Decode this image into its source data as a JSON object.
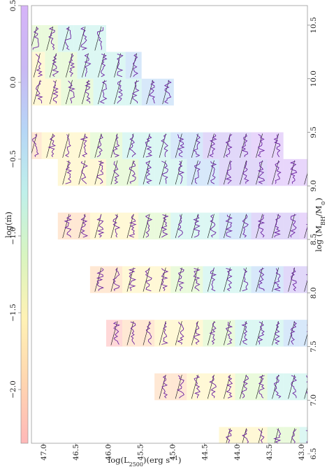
{
  "chart_data": {
    "type": "heatmap",
    "orientation": "rotated 90 degrees counter-clockwise",
    "description_of_cells": "grid of mini spectra panels colored by log(m)",
    "x_axis": {
      "label": "log(M_BH/M_⊙)",
      "label_display": "log (M",
      "label_sub": "BH",
      "label_tail": "/M",
      "label_sub2": "⊙",
      "label_end": ")",
      "range": [
        6.5,
        10.5
      ],
      "ticks": [
        "6.5",
        "7.0",
        "7.5",
        "8.0",
        "8.5",
        "9.0",
        "9.5",
        "10.0",
        "10.5"
      ]
    },
    "y_axis": {
      "label": "log(L2500)(erg s−1)",
      "label_display": "log(L",
      "label_sub": "2500",
      "label_tail": ")(erg s",
      "label_sup": "−1",
      "label_end": ")",
      "range": [
        42.75,
        47.25
      ],
      "ticks": [
        "43.0",
        "43.5",
        "44.0",
        "44.5",
        "45.0",
        "45.5",
        "46.0",
        "46.5",
        "47.0"
      ]
    },
    "colorbar": {
      "label": "log(ṁ)",
      "label_display": "log(ṁ)",
      "range": [
        -2.35,
        0.5
      ],
      "ticks": [
        "−2.0",
        "−1.5",
        "−1.0",
        "−0.5",
        "0.0",
        "0.5"
      ],
      "tick_values": [
        -2.0,
        -1.5,
        -1.0,
        -0.5,
        0.0,
        0.5
      ],
      "colors": [
        "#ffb8b8",
        "#ffd6b0",
        "#fff2b4",
        "#d8f5c0",
        "#bff0ea",
        "#b6d6f6",
        "#c9b8f4",
        "#d6b4f8"
      ]
    },
    "columns": [
      {
        "mass": 6.625,
        "lum_range": [
          42.9,
          44.15
        ]
      },
      {
        "mass": 7.125,
        "lum_range": [
          42.9,
          45.15
        ]
      },
      {
        "mass": 7.625,
        "lum_range": [
          42.9,
          45.95
        ]
      },
      {
        "mass": 8.125,
        "lum_range": [
          42.9,
          46.15
        ]
      },
      {
        "mass": 8.625,
        "lum_range": [
          42.9,
          46.75
        ]
      },
      {
        "mass": 9.125,
        "lum_range": [
          42.9,
          46.75
        ]
      },
      {
        "mass": 9.375,
        "lum_range": [
          43.4,
          47.15
        ]
      },
      {
        "mass": 9.875,
        "lum_range": [
          45.1,
          47.15
        ]
      },
      {
        "mass": 10.125,
        "lum_range": [
          45.6,
          47.15
        ]
      },
      {
        "mass": 10.375,
        "lum_range": [
          46.15,
          47.15
        ]
      }
    ],
    "legend": "none",
    "grid": false
  },
  "colors": {
    "spectrum_line": "#6a1fa0",
    "continuum_line": "#111111",
    "axis": "#888888"
  }
}
